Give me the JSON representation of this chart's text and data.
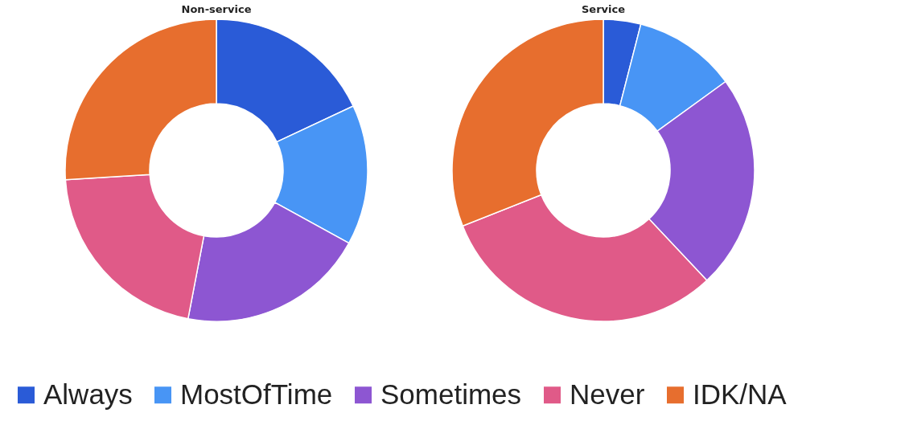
{
  "chart_data": [
    {
      "type": "donut",
      "title": "Non-service",
      "categories": [
        "Always",
        "MostOfTime",
        "Sometimes",
        "Never",
        "IDK/NA"
      ],
      "values": [
        18,
        15,
        20,
        21,
        26
      ],
      "colors": [
        "#2a5bd7",
        "#4895f5",
        "#8d56d2",
        "#e05a88",
        "#e76e2e"
      ],
      "legend": "bottom"
    },
    {
      "type": "donut",
      "title": "Service",
      "categories": [
        null,
        null,
        null,
        null,
        null
      ],
      "values": [
        4,
        11,
        23,
        31,
        31
      ],
      "colors": [
        "#2a5bd7",
        "#4895f5",
        "#8d56d2",
        "#e05a88",
        "#e76e2e"
      ]
    }
  ]
}
